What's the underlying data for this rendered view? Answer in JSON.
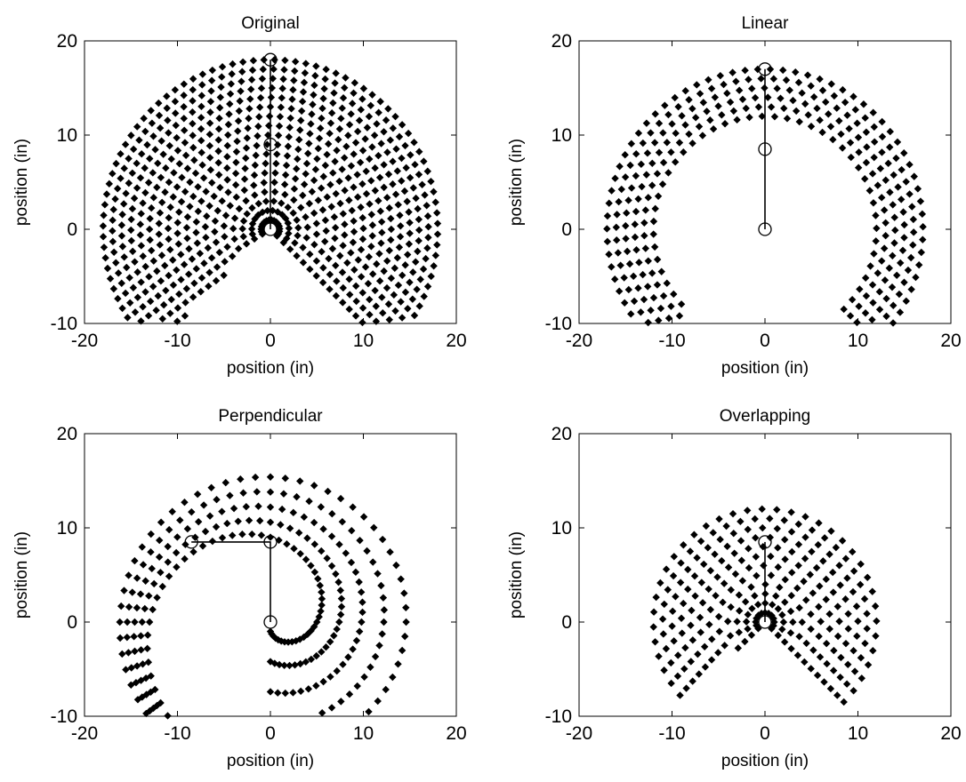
{
  "chart_data": [
    {
      "type": "scatter",
      "title": "Original",
      "xlabel": "position (in)",
      "ylabel": "position (in)",
      "xlim": [
        -20,
        20
      ],
      "ylim": [
        -10,
        20
      ],
      "xticks": [
        -20,
        -10,
        0,
        10,
        20
      ],
      "yticks": [
        -10,
        0,
        10,
        20
      ],
      "links": [
        9,
        9
      ],
      "workspace_sample": {
        "theta_min_deg": -45,
        "theta_max_deg": 225,
        "r_min": 1,
        "r_max": 18,
        "r_step": 1,
        "angle_step_deg": 5
      },
      "arm": [
        [
          0,
          0
        ],
        [
          0,
          9
        ],
        [
          0,
          18
        ]
      ],
      "marker_color": "#000000"
    },
    {
      "type": "scatter",
      "title": "Linear",
      "xlabel": "position (in)",
      "ylabel": "position (in)",
      "xlim": [
        -20,
        20
      ],
      "ylim": [
        -10,
        20
      ],
      "xticks": [
        -20,
        -10,
        0,
        10,
        20
      ],
      "yticks": [
        -10,
        0,
        10,
        20
      ],
      "links": [
        8.5,
        8.5
      ],
      "workspace_sample": {
        "theta_min_deg": -45,
        "theta_max_deg": 225,
        "r_min": 12,
        "r_max": 17,
        "r_step": 1,
        "angle_step_deg": 6
      },
      "arm": [
        [
          0,
          0
        ],
        [
          0,
          8.5
        ],
        [
          0,
          17
        ]
      ],
      "marker_color": "#000000"
    },
    {
      "type": "scatter",
      "title": "Perpendicular",
      "xlabel": "position (in)",
      "ylabel": "position (in)",
      "xlim": [
        -20,
        20
      ],
      "ylim": [
        -10,
        20
      ],
      "xticks": [
        -20,
        -10,
        0,
        10,
        20
      ],
      "yticks": [
        -10,
        0,
        10,
        20
      ],
      "links": [
        8.5,
        8.5
      ],
      "workspace_sample": {
        "theta_min_deg": -90,
        "theta_max_deg": 270,
        "r_start": 1,
        "r_end": 17,
        "angle_step_deg": 6
      },
      "arm": [
        [
          0,
          0
        ],
        [
          0,
          8.5
        ],
        [
          -8.5,
          8.5
        ]
      ],
      "marker_color": "#000000"
    },
    {
      "type": "scatter",
      "title": "Overlapping",
      "xlabel": "position (in)",
      "ylabel": "position (in)",
      "xlim": [
        -20,
        20
      ],
      "ylim": [
        -10,
        20
      ],
      "xticks": [
        -20,
        -10,
        0,
        10,
        20
      ],
      "yticks": [
        -10,
        0,
        10,
        20
      ],
      "links": [
        8.5,
        8.5
      ],
      "workspace_sample": {
        "theta_min_deg": -45,
        "theta_max_deg": 225,
        "r_min": 1,
        "r_max": 12,
        "r_step": 1,
        "angle_step_deg": 7
      },
      "arm": [
        [
          0,
          0
        ],
        [
          0,
          8.5
        ]
      ],
      "marker_color": "#000000"
    }
  ]
}
